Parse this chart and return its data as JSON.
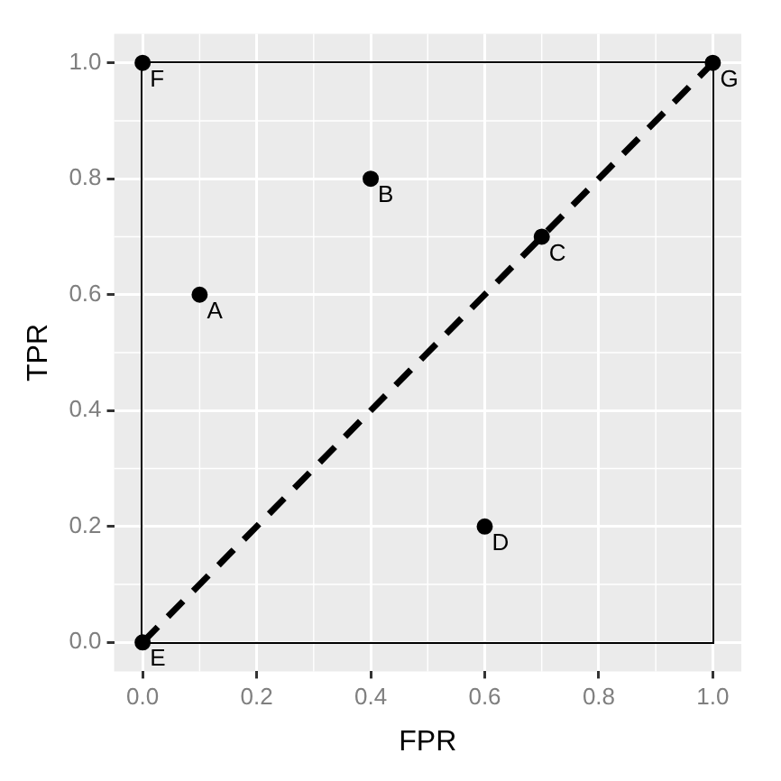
{
  "chart_data": {
    "type": "scatter",
    "xlabel": "FPR",
    "ylabel": "TPR",
    "xlim": [
      -0.05,
      1.05
    ],
    "ylim": [
      -0.05,
      1.05
    ],
    "xticks": [
      {
        "value": 0,
        "label": "0.0"
      },
      0.2,
      0.4,
      0.6,
      0.8,
      {
        "value": 1,
        "label": "1.0"
      }
    ],
    "yticks": [
      {
        "value": 0,
        "label": "0.0"
      },
      0.2,
      0.4,
      0.6,
      0.8,
      {
        "value": 1,
        "label": "1.0"
      }
    ],
    "grid": true,
    "legend": false,
    "series": [
      {
        "type": "line",
        "color": "#000000",
        "x": [
          0,
          1
        ],
        "values": [
          0,
          1
        ],
        "line_style": "dashed",
        "marker": "none"
      },
      {
        "type": "scatter",
        "color": "#000000",
        "x": [
          0.1,
          0.4,
          0.7,
          0.6,
          0,
          0,
          1
        ],
        "values": [
          0.6,
          0.8,
          0.7,
          0.2,
          0,
          1,
          1
        ],
        "marker": "circle"
      }
    ],
    "annotations": [
      {
        "text": "A",
        "x": 0.1,
        "y": 0.6
      },
      {
        "text": "B",
        "x": 0.4,
        "y": 0.8
      },
      {
        "text": "C",
        "x": 0.7,
        "y": 0.7
      },
      {
        "text": "D",
        "x": 0.6,
        "y": 0.2
      },
      {
        "text": "E",
        "x": 0,
        "y": 0
      },
      {
        "text": "F",
        "x": 0,
        "y": 1
      },
      {
        "text": "G",
        "x": 1,
        "y": 1
      }
    ]
  }
}
